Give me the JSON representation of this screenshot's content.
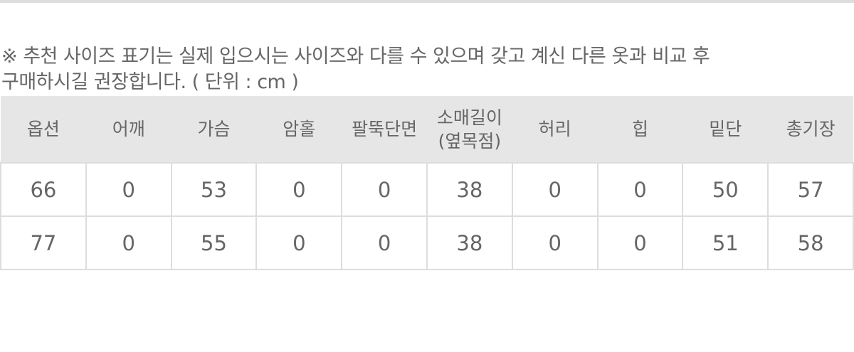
{
  "notice": {
    "line1": "※ 추천 사이즈 표기는 실제 입으시는 사이즈와 다를 수 있으며 갖고 계신 다른 옷과 비교 후",
    "line2": "구매하시길 권장합니다. ( 단위 : cm )"
  },
  "table": {
    "headers": [
      "옵션",
      "어깨",
      "가슴",
      "암홀",
      "팔뚝단면",
      "소매길이\n(옆목점)",
      "허리",
      "힙",
      "밑단",
      "총기장"
    ],
    "rows": [
      [
        "66",
        "0",
        "53",
        "0",
        "0",
        "38",
        "0",
        "0",
        "50",
        "57"
      ],
      [
        "77",
        "0",
        "55",
        "0",
        "0",
        "38",
        "0",
        "0",
        "51",
        "58"
      ]
    ]
  }
}
